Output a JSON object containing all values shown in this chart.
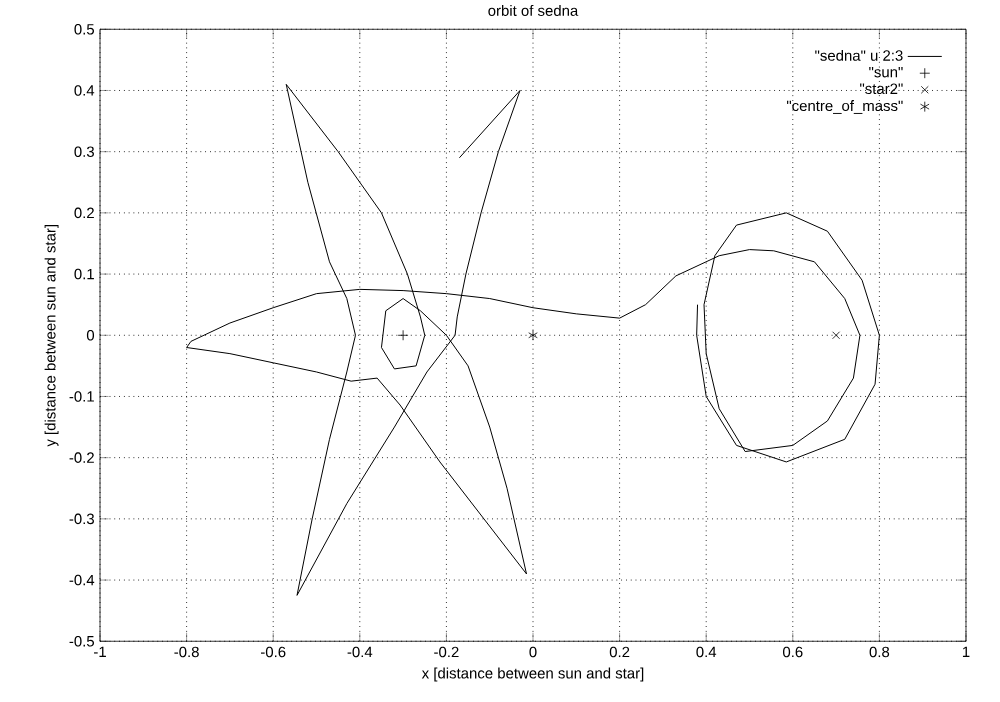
{
  "chart_data": {
    "type": "line",
    "title": "orbit of sedna",
    "xlabel": "x [distance between sun and star]",
    "ylabel": "y [distance between sun and star]",
    "xlim": [
      -1,
      1
    ],
    "ylim": [
      -0.5,
      0.5
    ],
    "xticks": [
      -1,
      -0.8,
      -0.6,
      -0.4,
      -0.2,
      0,
      0.2,
      0.4,
      0.6,
      0.8,
      1
    ],
    "yticks": [
      -0.5,
      -0.4,
      -0.3,
      -0.2,
      -0.1,
      0,
      0.1,
      0.2,
      0.3,
      0.4,
      0.5
    ],
    "grid": true,
    "legend": "top right",
    "series": [
      {
        "name": "\"sedna\" u 2:3",
        "color": "#000000",
        "marker": "none",
        "x": [
          -0.17,
          -0.03,
          -0.08,
          -0.12,
          -0.155,
          -0.175,
          -0.18,
          -0.245,
          -0.32,
          -0.43,
          -0.545,
          -0.51,
          -0.47,
          -0.43,
          -0.41,
          -0.43,
          -0.47,
          -0.52,
          -0.57,
          -0.45,
          -0.35,
          -0.29,
          -0.26,
          -0.25,
          -0.27,
          -0.32,
          -0.35,
          -0.34,
          -0.3,
          -0.26,
          -0.2,
          -0.15,
          -0.1,
          -0.06,
          -0.015,
          -0.215,
          -0.307,
          -0.36,
          -0.42,
          -0.5,
          -0.6,
          -0.7,
          -0.8,
          -0.79,
          -0.7,
          -0.6,
          -0.5,
          -0.4,
          -0.3,
          -0.2,
          -0.1,
          0.0,
          0.1,
          0.2,
          0.26,
          0.33,
          0.43,
          0.5,
          0.556,
          0.65,
          0.72,
          0.755,
          0.74,
          0.68,
          0.6,
          0.49,
          0.43,
          0.4,
          0.395,
          0.42,
          0.47,
          0.585,
          0.68,
          0.76,
          0.8,
          0.79,
          0.72,
          0.585,
          0.47,
          0.4,
          0.378,
          0.38
        ],
        "values": [
          0.29,
          0.4,
          0.3,
          0.2,
          0.1,
          0.03,
          0.0,
          -0.06,
          -0.15,
          -0.275,
          -0.425,
          -0.3,
          -0.17,
          -0.06,
          0.0,
          0.06,
          0.12,
          0.25,
          0.41,
          0.3,
          0.2,
          0.1,
          0.03,
          0.0,
          -0.05,
          -0.055,
          -0.02,
          0.04,
          0.06,
          0.04,
          0.0,
          -0.05,
          -0.15,
          -0.25,
          -0.39,
          -0.207,
          -0.114,
          -0.07,
          -0.075,
          -0.06,
          -0.045,
          -0.03,
          -0.02,
          -0.01,
          0.02,
          0.045,
          0.068,
          0.075,
          0.073,
          0.068,
          0.06,
          0.045,
          0.035,
          0.028,
          0.05,
          0.097,
          0.13,
          0.14,
          0.138,
          0.12,
          0.06,
          0.0,
          -0.07,
          -0.14,
          -0.18,
          -0.19,
          -0.12,
          -0.03,
          0.05,
          0.13,
          0.18,
          0.2,
          0.17,
          0.09,
          0.0,
          -0.08,
          -0.17,
          -0.207,
          -0.18,
          -0.1,
          0.0,
          0.05
        ]
      },
      {
        "name": "\"sun\"",
        "type": "scatter",
        "color": "#000000",
        "marker": "cross",
        "x": [
          -0.3
        ],
        "values": [
          0
        ]
      },
      {
        "name": "\"star2\"",
        "type": "scatter",
        "color": "#000000",
        "marker": "cross",
        "x": [
          0.7
        ],
        "values": [
          0
        ]
      },
      {
        "name": "\"centre_of_mass\"",
        "type": "scatter",
        "color": "#000000",
        "marker": "cross",
        "x": [
          0
        ],
        "values": [
          0
        ]
      }
    ]
  }
}
